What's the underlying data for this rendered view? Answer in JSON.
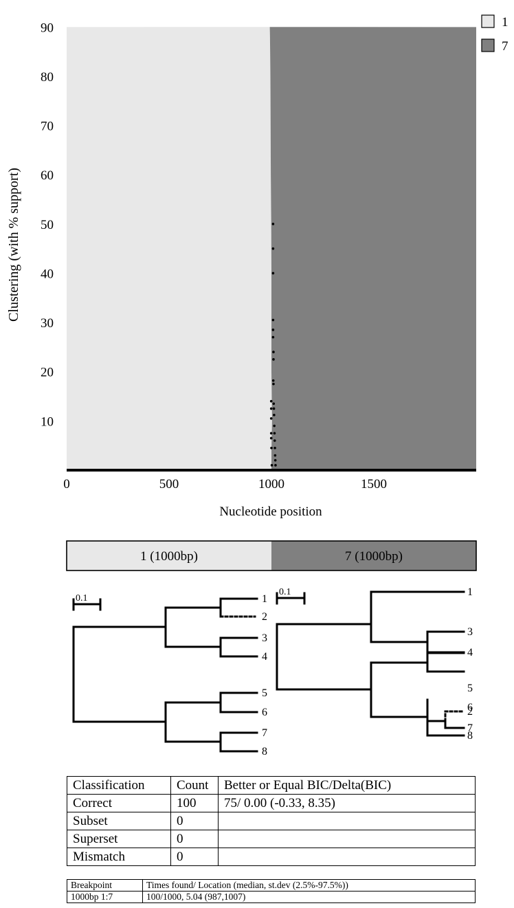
{
  "chart_data": {
    "type": "area",
    "ylabel": "Clustering (with % support)",
    "xlabel": "Nucleotide position",
    "xlim": [
      0,
      2000
    ],
    "ylim": [
      0,
      92
    ],
    "x_ticks": [
      0,
      500,
      1000,
      1500
    ],
    "y_ticks": [
      10,
      20,
      30,
      40,
      50,
      60,
      70,
      80,
      90
    ],
    "legend_position": "top-right",
    "series": [
      {
        "name": "1",
        "color": "#e8e8e8"
      },
      {
        "name": "7",
        "color": "#808080"
      }
    ],
    "boundary": [
      [
        1000,
        0
      ],
      [
        1000,
        4
      ],
      [
        1003,
        10
      ],
      [
        1000,
        20
      ],
      [
        1000,
        30
      ],
      [
        1000,
        40
      ],
      [
        999,
        50
      ],
      [
        997,
        60
      ],
      [
        996,
        70
      ],
      [
        995,
        80
      ],
      [
        993,
        88
      ],
      [
        992,
        90
      ]
    ],
    "breakpoint_points": [
      [
        1020,
        1.0
      ],
      [
        1019,
        2.0
      ],
      [
        1018,
        3.0
      ],
      [
        1017,
        4.5
      ],
      [
        1016,
        6.0
      ],
      [
        1015,
        7.5
      ],
      [
        1014,
        9.0
      ],
      [
        1013,
        11.2
      ],
      [
        1012,
        12.5
      ],
      [
        1011,
        13.5
      ],
      [
        1010,
        17.5
      ],
      [
        1009,
        18.2
      ],
      [
        1010,
        22.5
      ],
      [
        1010,
        24.0
      ],
      [
        1008,
        27.0
      ],
      [
        1008,
        28.5
      ],
      [
        1008,
        30.5
      ],
      [
        1008,
        40.0
      ],
      [
        1008,
        45.0
      ],
      [
        1008,
        50.0
      ],
      [
        1002,
        1.0
      ],
      [
        1000,
        4.5
      ],
      [
        999,
        6.5
      ],
      [
        999,
        7.5
      ],
      [
        999,
        10.5
      ],
      [
        999,
        12.5
      ],
      [
        999,
        14.0
      ]
    ]
  },
  "bar": {
    "left_label": "1 (1000bp)",
    "right_label": "7 (1000bp)",
    "left_color": "#e8e8e8",
    "right_color": "#808080"
  },
  "tree_left": {
    "scale_label": "0.1",
    "leaves": [
      "1",
      "2",
      "3",
      "4",
      "5",
      "6",
      "7",
      "8"
    ]
  },
  "tree_right": {
    "scale_label": "0.1",
    "leaves": [
      "1",
      "3",
      "4",
      "5",
      "6",
      "2",
      "7",
      "8"
    ]
  },
  "classification_table": {
    "headers": [
      "Classification",
      "Count",
      "Better or Equal BIC/Delta(BIC)"
    ],
    "rows": [
      [
        "Correct",
        "100",
        "75/ 0.00 (-0.33, 8.35)"
      ],
      [
        "Subset",
        "0",
        ""
      ],
      [
        "Superset",
        "0",
        ""
      ],
      [
        "Mismatch",
        "0",
        ""
      ]
    ]
  },
  "breakpoint_table": {
    "headers": [
      "Breakpoint",
      "Times found/ Location (median, st.dev (2.5%-97.5%))"
    ],
    "rows": [
      [
        "1000bp 1:7",
        "100/1000, 5.04 (987,1007)"
      ]
    ]
  }
}
